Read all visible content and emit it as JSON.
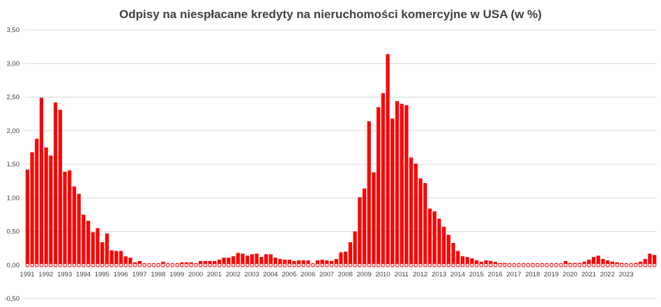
{
  "chart_data": {
    "type": "bar",
    "title": "Odpisy na niespłacane kredyty na nieruchomości komercyjne w USA (w %)",
    "xlabel": "",
    "ylabel": "",
    "ylim": [
      -0.5,
      3.5
    ],
    "yticks": [
      "-0,50",
      "0,00",
      "0,50",
      "1,00",
      "1,50",
      "2,00",
      "2,50",
      "3,00",
      "3,50"
    ],
    "ytick_values": [
      -0.5,
      0,
      0.5,
      1,
      1.5,
      2,
      2.5,
      3,
      3.5
    ],
    "grid": true,
    "legend": "none",
    "bar_color": "#ff0000",
    "year_labels": [
      "1991",
      "1992",
      "1993",
      "1994",
      "1995",
      "1996",
      "1997",
      "1998",
      "1999",
      "2000",
      "2001",
      "2002",
      "2003",
      "2004",
      "2005",
      "2006",
      "2007",
      "2008",
      "2009",
      "2010",
      "2011",
      "2012",
      "2013",
      "2014",
      "2015",
      "2016",
      "2017",
      "2018",
      "2019",
      "2020",
      "2021",
      "2022",
      "2023"
    ],
    "values": [
      1.42,
      1.68,
      1.88,
      2.49,
      1.75,
      1.63,
      2.42,
      2.31,
      1.39,
      1.41,
      1.17,
      1.06,
      0.75,
      0.66,
      0.49,
      0.55,
      0.34,
      0.47,
      0.22,
      0.21,
      0.21,
      0.13,
      0.11,
      0.04,
      0.06,
      0.02,
      0.0,
      0.01,
      0.0,
      0.05,
      0.02,
      0.0,
      0.02,
      0.04,
      0.04,
      0.04,
      0.02,
      0.06,
      0.06,
      0.06,
      0.06,
      0.08,
      0.11,
      0.11,
      0.13,
      0.18,
      0.17,
      0.14,
      0.16,
      0.17,
      0.12,
      0.16,
      0.16,
      0.11,
      0.09,
      0.08,
      0.08,
      0.06,
      0.07,
      0.07,
      0.07,
      0.0,
      0.07,
      0.08,
      0.07,
      0.06,
      0.09,
      0.19,
      0.2,
      0.34,
      0.5,
      1.01,
      1.14,
      2.14,
      1.38,
      2.35,
      2.56,
      3.14,
      2.18,
      2.44,
      2.4,
      2.38,
      1.6,
      1.51,
      1.29,
      1.22,
      0.84,
      0.8,
      0.69,
      0.57,
      0.45,
      0.33,
      0.21,
      0.13,
      0.12,
      0.1,
      0.07,
      0.05,
      0.07,
      0.06,
      0.05,
      0.03,
      0.03,
      0.02,
      0.01,
      0.0,
      0.02,
      0.02,
      0.02,
      0.01,
      0.02,
      0.01,
      0.02,
      0.02,
      0.0,
      0.06,
      0.03,
      0.03,
      0.03,
      0.05,
      0.08,
      0.12,
      0.14,
      0.09,
      0.07,
      0.05,
      0.04,
      0.03,
      0.02,
      0.01,
      0.03,
      0.05,
      0.09,
      0.17,
      0.15
    ]
  }
}
